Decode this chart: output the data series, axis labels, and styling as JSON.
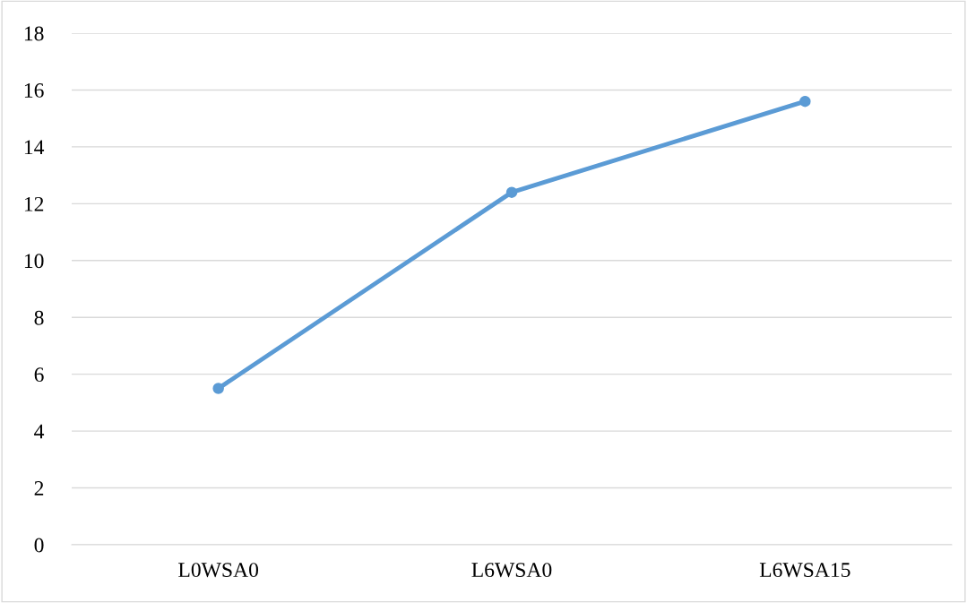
{
  "chart_data": {
    "type": "line",
    "categories": [
      "L0WSA0",
      "L6WSA0",
      "L6WSA15"
    ],
    "series": [
      {
        "color": "#5b9bd5",
        "values": [
          5.5,
          12.4,
          15.6
        ]
      }
    ],
    "ylim": [
      0,
      18
    ],
    "yticks": [
      0,
      2,
      4,
      6,
      8,
      10,
      12,
      14,
      16,
      18
    ],
    "grid": "y",
    "marker": "circle",
    "line_style": "solid"
  }
}
